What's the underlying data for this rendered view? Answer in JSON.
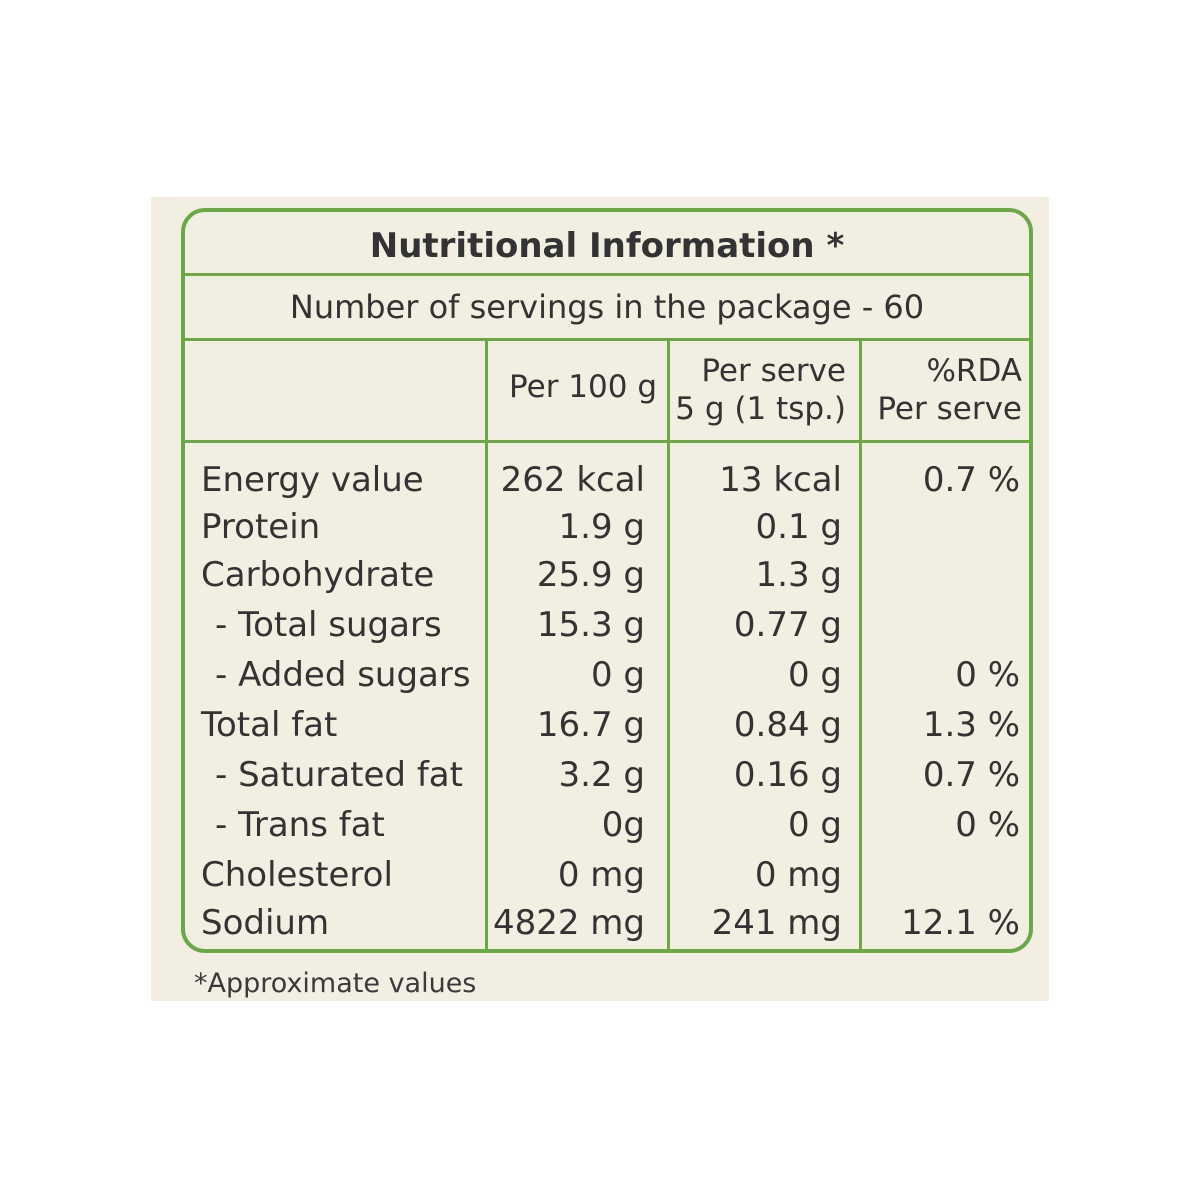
{
  "label": {
    "title": "Nutritional Information *",
    "servings_text": "Number of servings in the package - 60",
    "columns": {
      "per100": "Per 100 g",
      "perserve_line1": "Per serve",
      "perserve_line2": "5 g (1 tsp.)",
      "rda_line1": "%RDA",
      "rda_line2": "Per serve"
    },
    "rows": [
      {
        "name": "Energy value",
        "per100": "262 kcal",
        "perserve": "13 kcal",
        "rda": "0.7 %"
      },
      {
        "name": "Protein",
        "per100": "1.9 g",
        "perserve": "0.1 g",
        "rda": ""
      },
      {
        "name": "Carbohydrate",
        "per100": "25.9 g",
        "perserve": "1.3 g",
        "rda": ""
      },
      {
        "name": "- Total sugars",
        "per100": "15.3 g",
        "perserve": "0.77 g",
        "rda": ""
      },
      {
        "name": "- Added sugars",
        "per100": "0 g",
        "perserve": "0 g",
        "rda": "0 %"
      },
      {
        "name": "Total fat",
        "per100": "16.7 g",
        "perserve": "0.84 g",
        "rda": "1.3 %"
      },
      {
        "name": "- Saturated fat",
        "per100": "3.2 g",
        "perserve": "0.16 g",
        "rda": "0.7 %"
      },
      {
        "name": "- Trans fat",
        "per100": "0g",
        "perserve": "0 g",
        "rda": "0 %"
      },
      {
        "name": "Cholesterol",
        "per100": "0 mg",
        "perserve": "0 mg",
        "rda": ""
      },
      {
        "name": "Sodium",
        "per100": "4822 mg",
        "perserve": "241 mg",
        "rda": "12.1 %"
      }
    ],
    "footnote": "*Approximate values",
    "colors": {
      "border": "#6aaa45",
      "background": "#f2efe2",
      "text": "#333333"
    }
  }
}
